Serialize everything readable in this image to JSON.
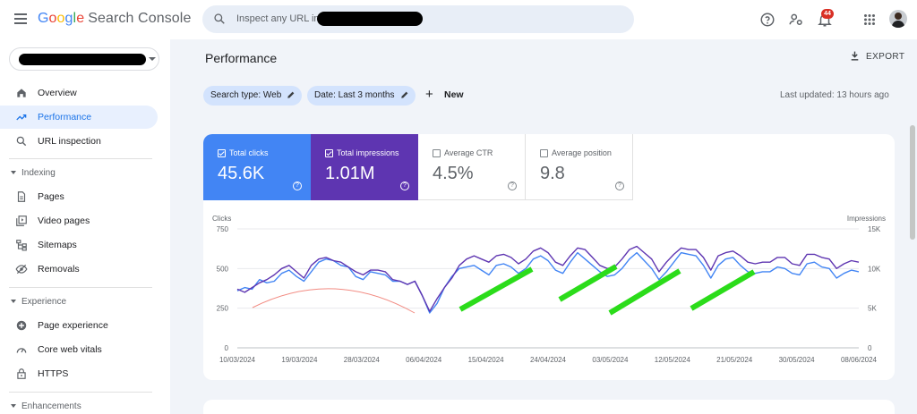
{
  "header": {
    "logo_letters": [
      "G",
      "o",
      "o",
      "g",
      "l",
      "e"
    ],
    "product": "Search Console",
    "search_placeholder": "Inspect any URL in",
    "notifications_count": "44",
    "icons": [
      "menu-icon",
      "search-icon",
      "help-icon",
      "manage-users-icon",
      "notifications-icon",
      "apps-icon",
      "avatar"
    ]
  },
  "sidebar": {
    "items": [
      {
        "label": "Overview",
        "icon": "home-icon"
      },
      {
        "label": "Performance",
        "icon": "trending-up-icon",
        "active": true
      },
      {
        "label": "URL inspection",
        "icon": "search-icon"
      }
    ],
    "sections": [
      {
        "title": "Indexing",
        "items": [
          {
            "label": "Pages",
            "icon": "pages-icon"
          },
          {
            "label": "Video pages",
            "icon": "video-pages-icon"
          },
          {
            "label": "Sitemaps",
            "icon": "sitemap-icon"
          },
          {
            "label": "Removals",
            "icon": "removals-icon"
          }
        ]
      },
      {
        "title": "Experience",
        "items": [
          {
            "label": "Page experience",
            "icon": "page-experience-icon"
          },
          {
            "label": "Core web vitals",
            "icon": "speed-icon"
          },
          {
            "label": "HTTPS",
            "icon": "lock-icon"
          }
        ]
      },
      {
        "title": "Enhancements",
        "items": []
      }
    ]
  },
  "main": {
    "title": "Performance",
    "export_label": "EXPORT",
    "filters": [
      {
        "label": "Search type: Web"
      },
      {
        "label": "Date: Last 3 months"
      }
    ],
    "new_label": "New",
    "last_updated": "Last updated: 13 hours ago",
    "metrics": [
      {
        "label": "Total clicks",
        "value": "45.6K",
        "checked": true,
        "color": "#4285f4"
      },
      {
        "label": "Total impressions",
        "value": "1.01M",
        "checked": true,
        "color": "#5e35b1"
      },
      {
        "label": "Average CTR",
        "value": "4.5%",
        "checked": false
      },
      {
        "label": "Average position",
        "value": "9.8",
        "checked": false
      }
    ]
  },
  "chart_data": {
    "type": "line",
    "left_axis_label": "Clicks",
    "right_axis_label": "Impressions",
    "left_ticks": [
      "750",
      "500",
      "250",
      "0"
    ],
    "right_ticks": [
      "15K",
      "10K",
      "5K",
      "0"
    ],
    "ylim_left": [
      0,
      750
    ],
    "ylim_right": [
      0,
      15000
    ],
    "x_tick_labels": [
      "10/03/2024",
      "19/03/2024",
      "28/03/2024",
      "06/04/2024",
      "15/04/2024",
      "24/04/2024",
      "03/05/2024",
      "12/05/2024",
      "21/05/2024",
      "30/05/2024",
      "08/06/2024"
    ],
    "grid": true,
    "series": [
      {
        "name": "Clicks",
        "axis": "left",
        "color": "#4285f4",
        "values": [
          360,
          380,
          370,
          430,
          410,
          420,
          470,
          490,
          450,
          420,
          480,
          540,
          560,
          550,
          520,
          510,
          450,
          430,
          480,
          470,
          460,
          420,
          420,
          400,
          420,
          330,
          220,
          280,
          380,
          450,
          500,
          510,
          520,
          490,
          460,
          520,
          530,
          510,
          470,
          500,
          560,
          580,
          550,
          490,
          470,
          540,
          600,
          560,
          520,
          480,
          450,
          460,
          500,
          560,
          600,
          550,
          500,
          430,
          480,
          540,
          600,
          590,
          580,
          520,
          440,
          520,
          560,
          570,
          520,
          480,
          470,
          480,
          480,
          510,
          500,
          470,
          460,
          530,
          540,
          510,
          500,
          440,
          470,
          490,
          480
        ]
      },
      {
        "name": "Impressions",
        "axis": "right",
        "color": "#5e35b1",
        "values": [
          7400,
          7000,
          7600,
          8200,
          8600,
          9200,
          10000,
          10400,
          9600,
          8800,
          10400,
          11200,
          11400,
          11000,
          10800,
          10200,
          9600,
          9200,
          9800,
          9800,
          9600,
          8600,
          8400,
          8000,
          8400,
          6600,
          4600,
          6200,
          7600,
          8800,
          10400,
          11200,
          11600,
          11200,
          10800,
          11600,
          11800,
          11400,
          10600,
          11200,
          12200,
          12600,
          12000,
          10800,
          10400,
          11600,
          12600,
          12400,
          11400,
          10400,
          10000,
          10200,
          11200,
          12400,
          12800,
          12000,
          11200,
          9600,
          10800,
          11800,
          12600,
          12400,
          12400,
          11400,
          9800,
          11600,
          12000,
          12200,
          11600,
          10800,
          10600,
          10800,
          10800,
          11400,
          11400,
          10600,
          10400,
          11800,
          11800,
          11400,
          11200,
          10000,
          10600,
          11000,
          10800
        ]
      }
    ]
  }
}
